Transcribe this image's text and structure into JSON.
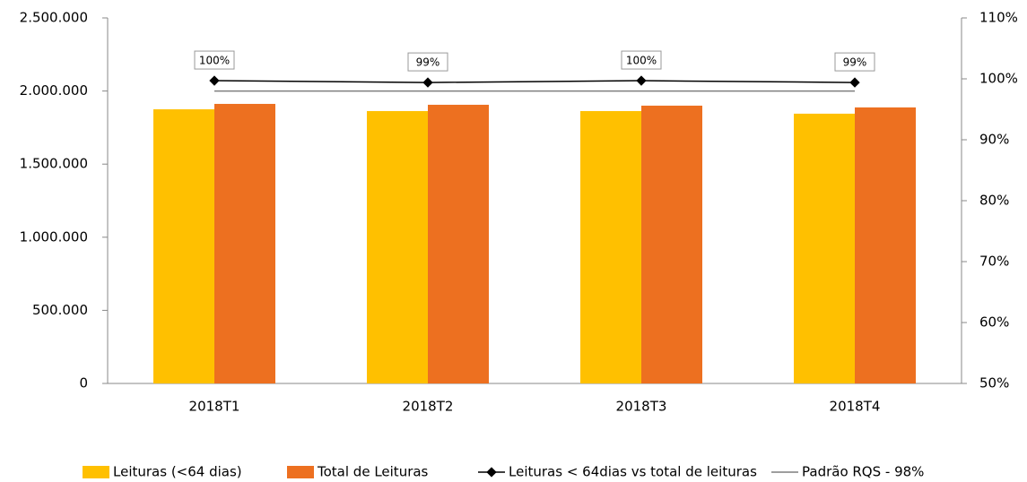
{
  "chart_data": {
    "type": "bar",
    "categories": [
      "2018T1",
      "2018T2",
      "2018T3",
      "2018T4"
    ],
    "series": [
      {
        "name": "Leituras (<64 dias)",
        "color": "#ffc000",
        "type": "bar",
        "values": [
          1875000,
          1863000,
          1863000,
          1845000
        ]
      },
      {
        "name": "Total de Leituras",
        "color": "#ed7020",
        "type": "bar",
        "values": [
          1912000,
          1906000,
          1900000,
          1888000
        ]
      },
      {
        "name": "Leituras < 64dias vs total de leituras",
        "color": "#000000",
        "type": "line",
        "axis": "y2",
        "values": [
          99.7,
          99.4,
          99.7,
          99.4
        ],
        "value_labels": [
          "100%",
          "99%",
          "100%",
          "99%"
        ]
      },
      {
        "name": "Padrão RQS - 98%",
        "color": "#7f7f7f",
        "type": "line",
        "axis": "y2",
        "values": [
          98,
          98,
          98,
          98
        ]
      }
    ],
    "ylim": [
      0,
      2500000
    ],
    "yticks": [
      0,
      {
        "value": 500000,
        "label": "500.000"
      },
      {
        "value": 1000000,
        "label": "1.000.000"
      },
      {
        "value": 1500000,
        "label": "1.500.000"
      },
      {
        "value": 2000000,
        "label": "2.000.000"
      },
      {
        "value": 2500000,
        "label": "2.500.000"
      }
    ],
    "y2lim": [
      50,
      110
    ],
    "y2ticks": [
      {
        "value": 50,
        "label": "50%"
      },
      {
        "value": 60,
        "label": "60%"
      },
      {
        "value": 70,
        "label": "70%"
      },
      {
        "value": 80,
        "label": "80%"
      },
      {
        "value": 90,
        "label": "90%"
      },
      {
        "value": 100,
        "label": "100%"
      },
      {
        "value": 110,
        "label": "110%"
      }
    ],
    "legend": "bottom"
  }
}
